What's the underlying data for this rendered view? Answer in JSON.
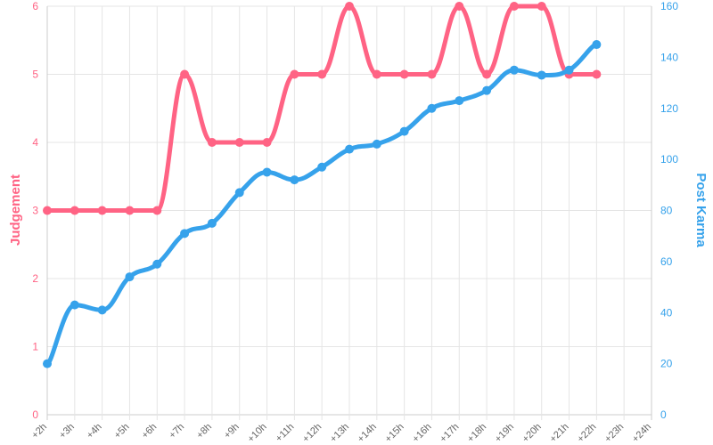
{
  "chart_data": {
    "type": "line",
    "categories": [
      "+2h",
      "+3h",
      "+4h",
      "+5h",
      "+6h",
      "+7h",
      "+8h",
      "+9h",
      "+10h",
      "+11h",
      "+12h",
      "+13h",
      "+14h",
      "+15h",
      "+16h",
      "+17h",
      "+18h",
      "+19h",
      "+20h",
      "+21h",
      "+22h",
      "+23h",
      "+24h"
    ],
    "series": [
      {
        "name": "Judgement",
        "axis": "left",
        "color": "#ff6384",
        "values": [
          3,
          3,
          3,
          3,
          3,
          5,
          4,
          4,
          4,
          5,
          5,
          6,
          5,
          5,
          5,
          6,
          5,
          6,
          6,
          5,
          5,
          null,
          null
        ]
      },
      {
        "name": "Post Karma",
        "axis": "right",
        "color": "#36a2eb",
        "values": [
          20,
          43,
          41,
          54,
          59,
          71,
          75,
          87,
          95,
          92,
          97,
          104,
          106,
          111,
          120,
          123,
          127,
          135,
          133,
          135,
          145,
          null,
          null
        ]
      }
    ],
    "y_left": {
      "label": "Judgement",
      "min": 0,
      "max": 6,
      "ticks": [
        "0",
        "1",
        "2",
        "3",
        "4",
        "5",
        "6"
      ]
    },
    "y_right": {
      "label": "Post Karma",
      "min": 0,
      "max": 160,
      "ticks": [
        "0",
        "20",
        "40",
        "60",
        "80",
        "100",
        "120",
        "140",
        "160"
      ]
    },
    "grid": true,
    "legend": "none"
  }
}
